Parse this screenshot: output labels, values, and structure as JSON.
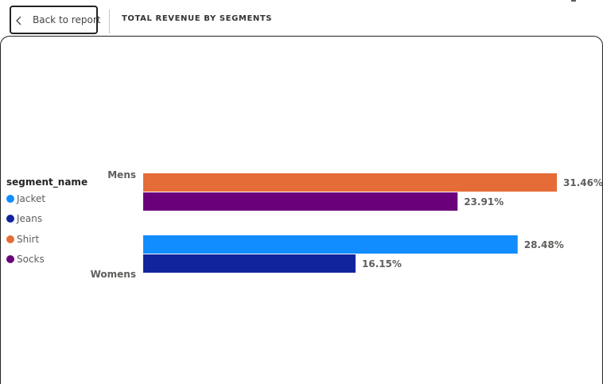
{
  "header": {
    "back_label": "Back to report",
    "visual_title": "TOTAL REVENUE BY SEGMENTS"
  },
  "legend": {
    "title": "segment_name",
    "items": [
      {
        "label": "Jacket",
        "color": "#118DFF"
      },
      {
        "label": "Jeans",
        "color": "#12239E"
      },
      {
        "label": "Shirt",
        "color": "#E66C37"
      },
      {
        "label": "Socks",
        "color": "#6B007B"
      }
    ]
  },
  "chart_data": {
    "type": "bar",
    "orientation": "horizontal",
    "categories": [
      "Mens",
      "Womens"
    ],
    "bars": [
      {
        "category": "Mens",
        "series": "Shirt",
        "value": 31.46,
        "label": "31.46%",
        "color": "#E66C37"
      },
      {
        "category": "Mens",
        "series": "Socks",
        "value": 23.91,
        "label": "23.91%",
        "color": "#6B007B"
      },
      {
        "category": "Womens",
        "series": "Jacket",
        "value": 28.48,
        "label": "28.48%",
        "color": "#118DFF"
      },
      {
        "category": "Womens",
        "series": "Jeans",
        "value": 16.15,
        "label": "16.15%",
        "color": "#12239E"
      }
    ],
    "title": "TOTAL REVENUE BY SEGMENTS",
    "legend_title": "segment_name",
    "legend_position": "left",
    "grid": false
  }
}
